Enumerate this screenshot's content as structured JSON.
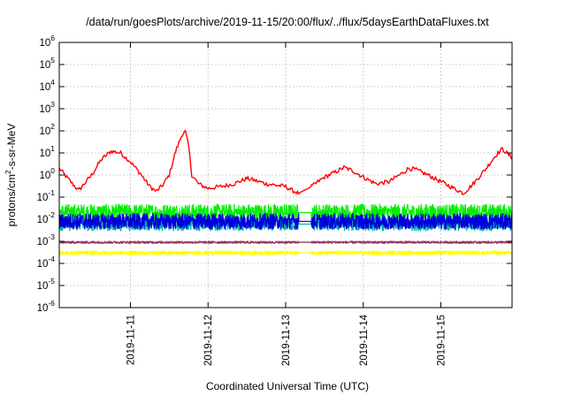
{
  "chart_data": {
    "type": "line",
    "title": "/data/run/goesPlots/archive/2019-11-15/20:00/flux/../flux/5daysEarthDataFluxes.txt",
    "xlabel": "Coordinated Universal Time (UTC)",
    "ylabel_parts": [
      "protons/cm",
      "2",
      "-s-sr-MeV"
    ],
    "yscale": "log",
    "ylim": [
      1e-06,
      1000000.0
    ],
    "xlim": [
      "2019-11-10T02:00",
      "2019-11-15T22:00"
    ],
    "grid": true,
    "y_ticks": [
      {
        "value": 1e-06,
        "base": "10",
        "exp": "-6"
      },
      {
        "value": 1e-05,
        "base": "10",
        "exp": "-5"
      },
      {
        "value": 0.0001,
        "base": "10",
        "exp": "-4"
      },
      {
        "value": 0.001,
        "base": "10",
        "exp": "-3"
      },
      {
        "value": 0.01,
        "base": "10",
        "exp": "-2"
      },
      {
        "value": 0.1,
        "base": "10",
        "exp": "-1"
      },
      {
        "value": 1,
        "base": "10",
        "exp": "0"
      },
      {
        "value": 10,
        "base": "10",
        "exp": "1"
      },
      {
        "value": 100,
        "base": "10",
        "exp": "2"
      },
      {
        "value": 1000,
        "base": "10",
        "exp": "3"
      },
      {
        "value": 10000,
        "base": "10",
        "exp": "4"
      },
      {
        "value": 100000,
        "base": "10",
        "exp": "5"
      },
      {
        "value": 1000000,
        "base": "10",
        "exp": "6"
      }
    ],
    "x_ticks": [
      "2019-11-11",
      "2019-11-12",
      "2019-11-13",
      "2019-11-14",
      "2019-11-15"
    ],
    "data_gap": [
      "2019-11-13T04:00",
      "2019-11-13T08:00"
    ],
    "series": [
      {
        "color": "#ff0000",
        "points": [
          [
            "2019-11-10T02:00",
            2.0
          ],
          [
            "2019-11-10T05:00",
            0.6
          ],
          [
            "2019-11-10T08:00",
            0.2
          ],
          [
            "2019-11-10T12:00",
            1.0
          ],
          [
            "2019-11-10T15:00",
            5.0
          ],
          [
            "2019-11-10T18:00",
            12
          ],
          [
            "2019-11-10T21:00",
            10
          ],
          [
            "2019-11-11T00:00",
            4.0
          ],
          [
            "2019-11-11T03:00",
            1.2
          ],
          [
            "2019-11-11T06:00",
            0.3
          ],
          [
            "2019-11-11T08:00",
            0.18
          ],
          [
            "2019-11-11T10:00",
            0.35
          ],
          [
            "2019-11-11T12:00",
            1.0
          ],
          [
            "2019-11-11T14:00",
            12
          ],
          [
            "2019-11-11T16:00",
            70
          ],
          [
            "2019-11-11T17:00",
            90
          ],
          [
            "2019-11-11T18:00",
            20
          ],
          [
            "2019-11-11T19:00",
            1.0
          ],
          [
            "2019-11-11T21:00",
            0.4
          ],
          [
            "2019-11-12T00:00",
            0.25
          ],
          [
            "2019-11-12T04:00",
            0.3
          ],
          [
            "2019-11-12T08:00",
            0.4
          ],
          [
            "2019-11-12T12:00",
            0.7
          ],
          [
            "2019-11-12T14:00",
            0.6
          ],
          [
            "2019-11-12T18:00",
            0.4
          ],
          [
            "2019-11-13T00:00",
            0.3
          ],
          [
            "2019-11-13T02:00",
            0.2
          ],
          [
            "2019-11-13T04:00",
            0.15
          ],
          [
            "2019-11-13T08:00",
            0.3
          ],
          [
            "2019-11-13T12:00",
            0.8
          ],
          [
            "2019-11-13T16:00",
            1.5
          ],
          [
            "2019-11-13T18:00",
            2.2
          ],
          [
            "2019-11-13T21:00",
            1.5
          ],
          [
            "2019-11-14T00:00",
            0.8
          ],
          [
            "2019-11-14T04:00",
            0.4
          ],
          [
            "2019-11-14T08:00",
            0.5
          ],
          [
            "2019-11-14T12:00",
            1.2
          ],
          [
            "2019-11-14T14:00",
            2.0
          ],
          [
            "2019-11-14T16:00",
            1.8
          ],
          [
            "2019-11-14T20:00",
            1.0
          ],
          [
            "2019-11-15T00:00",
            0.5
          ],
          [
            "2019-11-15T04:00",
            0.25
          ],
          [
            "2019-11-15T07:00",
            0.15
          ],
          [
            "2019-11-15T10:00",
            0.4
          ],
          [
            "2019-11-15T14:00",
            2.0
          ],
          [
            "2019-11-15T17:00",
            8.0
          ],
          [
            "2019-11-15T19:00",
            15
          ],
          [
            "2019-11-15T22:00",
            6.0
          ]
        ]
      },
      {
        "color": "#00ee00",
        "points": [
          [
            "2019-11-10T02:00",
            0.02
          ],
          [
            "2019-11-11T00:00",
            0.02
          ],
          [
            "2019-11-12T00:00",
            0.02
          ],
          [
            "2019-11-13T04:00",
            0.02
          ],
          [
            "2019-11-13T08:00",
            0.02
          ],
          [
            "2019-11-14T00:00",
            0.02
          ],
          [
            "2019-11-15T00:00",
            0.02
          ],
          [
            "2019-11-15T22:00",
            0.02
          ]
        ]
      },
      {
        "color": "#00aaaa",
        "points": [
          [
            "2019-11-10T02:00",
            0.006
          ],
          [
            "2019-11-12T00:00",
            0.006
          ],
          [
            "2019-11-13T04:00",
            0.006
          ],
          [
            "2019-11-13T08:00",
            0.006
          ],
          [
            "2019-11-15T22:00",
            0.006
          ]
        ]
      },
      {
        "color": "#0000dd",
        "points": [
          [
            "2019-11-10T02:00",
            0.008
          ],
          [
            "2019-11-11T00:00",
            0.008
          ],
          [
            "2019-11-12T00:00",
            0.008
          ],
          [
            "2019-11-13T04:00",
            0.008
          ],
          [
            "2019-11-13T08:00",
            0.008
          ],
          [
            "2019-11-14T00:00",
            0.008
          ],
          [
            "2019-11-15T00:00",
            0.008
          ],
          [
            "2019-11-15T22:00",
            0.008
          ]
        ]
      },
      {
        "color": "#ffff00",
        "points": [
          [
            "2019-11-10T02:00",
            0.0003
          ],
          [
            "2019-11-12T00:00",
            0.0003
          ],
          [
            "2019-11-13T04:00",
            0.0003
          ],
          [
            "2019-11-13T08:00",
            0.0003
          ],
          [
            "2019-11-15T22:00",
            0.0003
          ]
        ]
      },
      {
        "color": "#993366",
        "points": [
          [
            "2019-11-10T02:00",
            0.0009
          ],
          [
            "2019-11-12T00:00",
            0.0009
          ],
          [
            "2019-11-13T04:00",
            0.0009
          ],
          [
            "2019-11-13T08:00",
            0.0009
          ],
          [
            "2019-11-15T22:00",
            0.0009
          ]
        ]
      }
    ]
  }
}
